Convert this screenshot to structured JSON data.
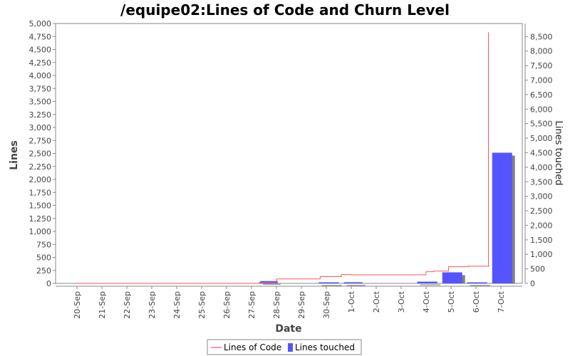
{
  "chart_data": {
    "type": "bar",
    "title": "/equipe02:Lines of Code and Churn Level",
    "xlabel": "Date",
    "ylabel": "Lines",
    "y2label": "Lines touched",
    "categories": [
      "20-Sep",
      "21-Sep",
      "22-Sep",
      "23-Sep",
      "24-Sep",
      "25-Sep",
      "26-Sep",
      "27-Sep",
      "28-Sep",
      "29-Sep",
      "30-Sep",
      "1-Oct",
      "2-Oct",
      "3-Oct",
      "4-Oct",
      "5-Oct",
      "6-Oct",
      "7-Oct"
    ],
    "ylim": [
      0,
      5000
    ],
    "y2lim": [
      0,
      8950
    ],
    "yticks": [
      "0",
      "250",
      "500",
      "750",
      "1,000",
      "1,250",
      "1,500",
      "1,750",
      "2,000",
      "2,250",
      "2,500",
      "2,750",
      "3,000",
      "3,250",
      "3,500",
      "3,750",
      "4,000",
      "4,250",
      "4,500",
      "4,750",
      "5,000"
    ],
    "y2ticks": [
      "0",
      "500",
      "1,000",
      "1,500",
      "2,000",
      "2,500",
      "3,000",
      "3,500",
      "4,000",
      "4,500",
      "5,000",
      "5,500",
      "6,000",
      "6,500",
      "7,000",
      "7,500",
      "8,000",
      "8,500"
    ],
    "series": [
      {
        "name": "Lines of Code",
        "type": "step-line",
        "color": "#ff5555",
        "points": [
          {
            "x": 0.0,
            "y": 0
          },
          {
            "x": 7.3,
            "y": 0
          },
          {
            "x": 7.3,
            "y": 20
          },
          {
            "x": 8.0,
            "y": 20
          },
          {
            "x": 8.0,
            "y": 85
          },
          {
            "x": 9.75,
            "y": 85
          },
          {
            "x": 9.75,
            "y": 130
          },
          {
            "x": 10.6,
            "y": 130
          },
          {
            "x": 10.6,
            "y": 170
          },
          {
            "x": 11.0,
            "y": 170
          },
          {
            "x": 11.0,
            "y": 165
          },
          {
            "x": 14.0,
            "y": 165
          },
          {
            "x": 14.0,
            "y": 225
          },
          {
            "x": 14.3,
            "y": 225
          },
          {
            "x": 14.3,
            "y": 235
          },
          {
            "x": 14.9,
            "y": 235
          },
          {
            "x": 14.9,
            "y": 320
          },
          {
            "x": 15.7,
            "y": 320
          },
          {
            "x": 15.7,
            "y": 330
          },
          {
            "x": 16.5,
            "y": 330
          },
          {
            "x": 16.5,
            "y": 4830
          },
          {
            "x": 16.5,
            "y": 330
          },
          {
            "x": 16.55,
            "y": 330
          }
        ]
      },
      {
        "name": "Lines touched",
        "type": "bar",
        "color": "#5555ff",
        "bars": [
          {
            "x0": 7.35,
            "x1": 8.05,
            "value": 80
          },
          {
            "x0": 9.7,
            "x1": 10.5,
            "value": 30
          },
          {
            "x0": 10.7,
            "x1": 11.45,
            "value": 40
          },
          {
            "x0": 13.65,
            "x1": 14.45,
            "value": 60
          },
          {
            "x0": 14.65,
            "x1": 15.45,
            "value": 380
          },
          {
            "x0": 15.65,
            "x1": 16.45,
            "value": 25
          },
          {
            "x0": 16.65,
            "x1": 17.45,
            "value": 4500
          }
        ]
      }
    ],
    "legend_position": "bottom-center",
    "grid": false
  }
}
